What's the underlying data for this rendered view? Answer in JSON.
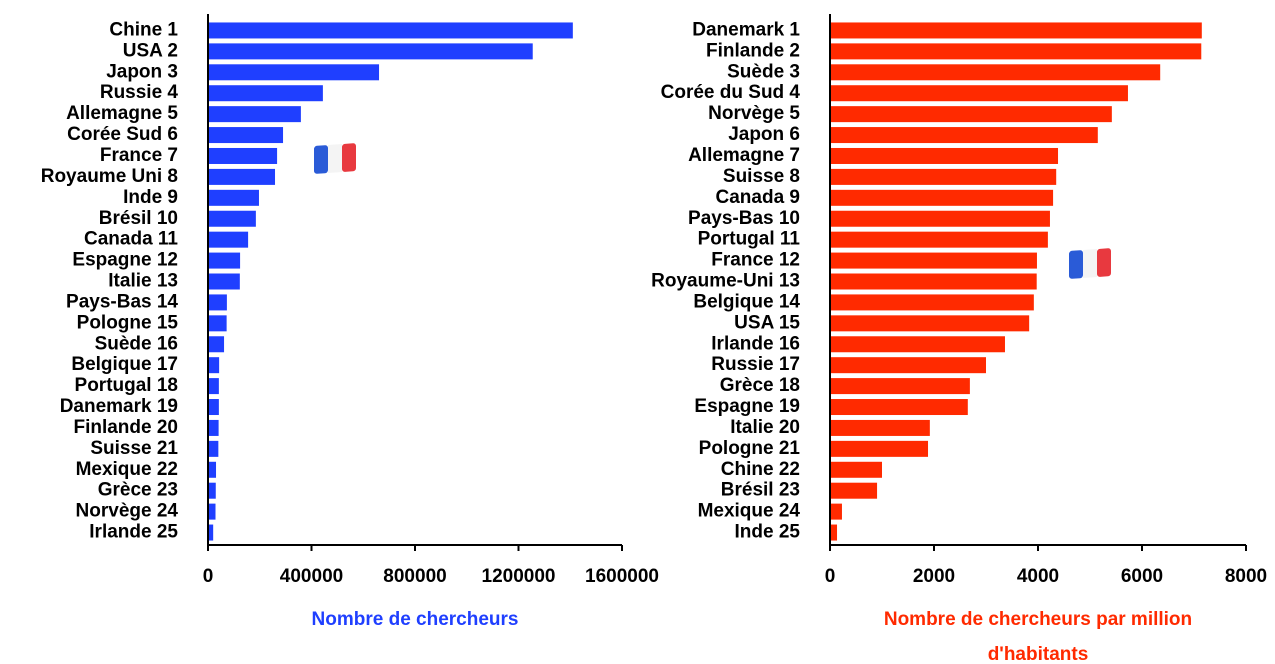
{
  "chart_data": [
    {
      "type": "bar",
      "orientation": "horizontal",
      "xlabel": "Nombre de chercheurs",
      "color": "#1f3fff",
      "categories": [
        "Chine 1",
        "USA 2",
        "Japon 3",
        "Russie 4",
        "Allemagne 5",
        "Corée Sud 6",
        "France 7",
        "Royaume Uni 8",
        "Inde 9",
        "Brésil 10",
        "Canada 11",
        "Espagne 12",
        "Italie 13",
        "Pays-Bas 14",
        "Pologne 15",
        "Suède 16",
        "Belgique 17",
        "Portugal 18",
        "Danemark 19",
        "Finlande 20",
        "Suisse 21",
        "Mexique 22",
        "Grèce 23",
        "Norvège 24",
        "Irlande 25"
      ],
      "values": [
        1410000,
        1255000,
        661000,
        444000,
        359000,
        290000,
        267000,
        259000,
        197000,
        185000,
        155000,
        124000,
        123000,
        73000,
        72000,
        62000,
        43000,
        42000,
        42000,
        41000,
        40000,
        31000,
        30000,
        29000,
        20000
      ],
      "xlim": [
        0,
        1600000
      ],
      "xticks": [
        0,
        400000,
        800000,
        1200000,
        1600000
      ]
    },
    {
      "type": "bar",
      "orientation": "horizontal",
      "xlabel": "Nombre de chercheurs par million d'habitants",
      "color": "#ff2a00",
      "categories": [
        "Danemark 1",
        "Finlande 2",
        "Suède 3",
        "Corée du Sud 4",
        "Norvège 5",
        "Japon 6",
        "Allemagne 7",
        "Suisse 8",
        "Canada 9",
        "Pays-Bas 10",
        "Portugal 11",
        "France 12",
        "Royaume-Uni 13",
        "Belgique 14",
        "USA 15",
        "Irlande 16",
        "Russie 17",
        "Grèce 18",
        "Espagne 19",
        "Italie 20",
        "Pologne 21",
        "Chine 22",
        "Brésil 23",
        "Mexique 24",
        "Inde 25"
      ],
      "values": [
        7150,
        7140,
        6350,
        5730,
        5420,
        5150,
        4385,
        4350,
        4290,
        4230,
        4190,
        3980,
        3975,
        3920,
        3830,
        3365,
        3000,
        2690,
        2650,
        1920,
        1885,
        1000,
        905,
        230,
        135
      ],
      "xlim": [
        0,
        8000
      ],
      "xticks": [
        0,
        2000,
        4000,
        6000,
        8000
      ]
    }
  ]
}
